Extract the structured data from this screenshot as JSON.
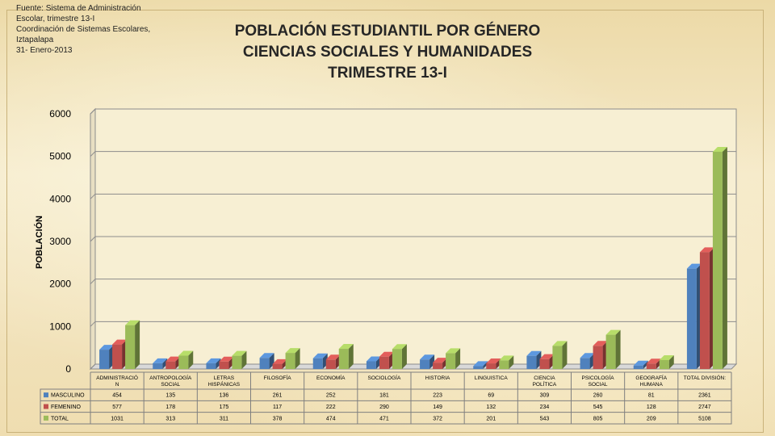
{
  "source_note": [
    "Fuente: Sistema de Administración",
    "Escolar, trimestre 13-I",
    "Coordinación de Sistemas Escolares,",
    "Iztapalapa",
    "31- Enero-2013"
  ],
  "chart_title": [
    "POBLACIÓN ESTUDIANTIL POR GÉNERO",
    "CIENCIAS SOCIALES Y HUMANIDADES",
    "TRIMESTRE 13-I"
  ],
  "chart_data": {
    "type": "bar",
    "title": "POBLACIÓN ESTUDIANTIL POR GÉNERO CIENCIAS SOCIALES Y HUMANIDADES TRIMESTRE 13-I",
    "ylabel": "POBLACIÓN",
    "xlabel": "",
    "ylim": [
      0,
      6000
    ],
    "yticks": [
      0,
      1000,
      2000,
      3000,
      4000,
      5000,
      6000
    ],
    "grid": true,
    "legend": "data-table",
    "categories": [
      [
        "ADMINISTRACIÓ",
        "N"
      ],
      [
        "ANTROPOLOGÍA",
        "SOCIAL"
      ],
      [
        "LETRAS",
        "HISPÁNICAS"
      ],
      [
        "FILOSOFÍA"
      ],
      [
        "ECONOMÍA"
      ],
      [
        "SOCIOLOGÍA"
      ],
      [
        "HISTORIA"
      ],
      [
        "LINGUISTICA"
      ],
      [
        "CIENCIA",
        "POLÍTICA"
      ],
      [
        "PSICOLOGÍA",
        "SOCIAL"
      ],
      [
        "GEOGRAFÍA",
        "HUMANA"
      ],
      [
        "TOTAL DIVISIÓN:"
      ]
    ],
    "series": [
      {
        "name": "MASCULINO",
        "color": "#4f81bd",
        "values": [
          454,
          135,
          136,
          261,
          252,
          181,
          223,
          69,
          309,
          260,
          81,
          2361
        ]
      },
      {
        "name": "FEMENINO",
        "color": "#c0504d",
        "values": [
          577,
          178,
          175,
          117,
          222,
          290,
          149,
          132,
          234,
          545,
          128,
          2747
        ]
      },
      {
        "name": "TOTAL",
        "color": "#9bbb59",
        "values": [
          1031,
          313,
          311,
          378,
          474,
          471,
          372,
          201,
          543,
          805,
          209,
          5108
        ]
      }
    ]
  }
}
